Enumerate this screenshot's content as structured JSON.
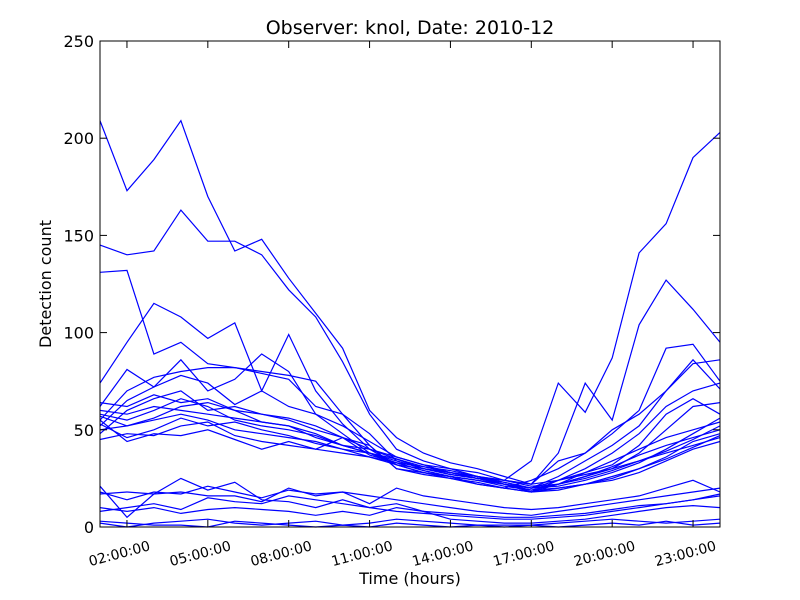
{
  "chart_data": {
    "type": "line",
    "title": "Observer: knol, Date: 2010-12",
    "xlabel": "Time (hours)",
    "ylabel": "Detection count",
    "x": [
      1,
      2,
      3,
      4,
      5,
      6,
      7,
      8,
      9,
      10,
      11,
      12,
      13,
      14,
      15,
      16,
      17,
      18,
      19,
      20,
      21,
      22,
      23,
      24
    ],
    "xlim": [
      1,
      24
    ],
    "ylim": [
      0,
      250
    ],
    "grid": false,
    "xticks": [
      {
        "x": 2,
        "label": "02:00:00"
      },
      {
        "x": 5,
        "label": "05:00:00"
      },
      {
        "x": 8,
        "label": "08:00:00"
      },
      {
        "x": 11,
        "label": "11:00:00"
      },
      {
        "x": 14,
        "label": "14:00:00"
      },
      {
        "x": 17,
        "label": "17:00:00"
      },
      {
        "x": 20,
        "label": "20:00:00"
      },
      {
        "x": 23,
        "label": "23:00:00"
      }
    ],
    "yticks": [
      0,
      50,
      100,
      150,
      200,
      250
    ],
    "line_color": "#0000ff",
    "series": [
      {
        "values": [
          209,
          173,
          189,
          209,
          170,
          142,
          148,
          128,
          110,
          92,
          60,
          46,
          38,
          33,
          30,
          26,
          22,
          34,
          38,
          50,
          58,
          70,
          84,
          86
        ]
      },
      {
        "values": [
          145,
          140,
          142,
          163,
          147,
          147,
          140,
          122,
          108,
          85,
          58,
          40,
          34,
          30,
          28,
          24,
          22,
          38,
          74,
          55,
          104,
          127,
          112,
          95
        ]
      },
      {
        "values": [
          131,
          132,
          89,
          95,
          84,
          82,
          80,
          78,
          75,
          58,
          48,
          34,
          30,
          27,
          25,
          24,
          34,
          74,
          59,
          87,
          141,
          156,
          190,
          203
        ]
      },
      {
        "values": [
          74,
          95,
          115,
          108,
          97,
          105,
          70,
          99,
          70,
          53,
          40,
          32,
          28,
          26,
          22,
          20,
          24,
          30,
          38,
          48,
          60,
          92,
          94,
          75
        ]
      },
      {
        "values": [
          62,
          81,
          72,
          86,
          70,
          76,
          89,
          80,
          58,
          52,
          44,
          36,
          32,
          30,
          26,
          22,
          20,
          26,
          34,
          42,
          52,
          70,
          86,
          71
        ]
      },
      {
        "values": [
          55,
          70,
          77,
          80,
          82,
          82,
          79,
          76,
          62,
          58,
          42,
          30,
          28,
          26,
          24,
          22,
          18,
          24,
          30,
          38,
          48,
          62,
          70,
          74
        ]
      },
      {
        "values": [
          52,
          65,
          72,
          78,
          74,
          63,
          70,
          62,
          58,
          48,
          38,
          32,
          30,
          28,
          26,
          23,
          20,
          22,
          28,
          32,
          42,
          58,
          66,
          58
        ]
      },
      {
        "values": [
          48,
          60,
          66,
          70,
          60,
          62,
          58,
          55,
          50,
          46,
          37,
          33,
          31,
          29,
          26,
          24,
          21,
          22,
          26,
          30,
          38,
          50,
          62,
          64
        ]
      },
      {
        "values": [
          58,
          55,
          60,
          66,
          62,
          55,
          52,
          50,
          47,
          42,
          40,
          35,
          30,
          28,
          25,
          23,
          20,
          21,
          24,
          28,
          33,
          40,
          48,
          56
        ]
      },
      {
        "values": [
          50,
          52,
          55,
          58,
          55,
          50,
          48,
          46,
          44,
          40,
          38,
          34,
          30,
          27,
          25,
          22,
          19,
          20,
          22,
          26,
          30,
          36,
          44,
          48
        ]
      },
      {
        "values": [
          45,
          48,
          47,
          52,
          54,
          47,
          44,
          42,
          40,
          38,
          36,
          33,
          29,
          26,
          24,
          22,
          18,
          19,
          22,
          24,
          28,
          34,
          40,
          44
        ]
      },
      {
        "values": [
          53,
          46,
          50,
          56,
          52,
          54,
          50,
          47,
          43,
          40,
          36,
          32,
          28,
          25,
          23,
          20,
          18,
          20,
          22,
          25,
          30,
          35,
          41,
          47
        ]
      },
      {
        "values": [
          60,
          58,
          62,
          60,
          58,
          56,
          54,
          52,
          48,
          42,
          38,
          33,
          29,
          26,
          24,
          21,
          19,
          22,
          25,
          29,
          34,
          39,
          45,
          52
        ]
      },
      {
        "values": [
          64,
          62,
          68,
          64,
          66,
          60,
          58,
          56,
          52,
          46,
          40,
          36,
          32,
          28,
          25,
          22,
          20,
          24,
          28,
          34,
          40,
          46,
          50,
          54
        ]
      },
      {
        "values": [
          55,
          44,
          48,
          47,
          50,
          45,
          40,
          44,
          40,
          46,
          42,
          30,
          27,
          25,
          22,
          20,
          18,
          22,
          26,
          31,
          37,
          42,
          46,
          50
        ]
      },
      {
        "values": [
          57,
          52,
          56,
          62,
          64,
          60,
          54,
          52,
          46,
          42,
          38,
          35,
          31,
          28,
          26,
          24,
          22,
          24,
          27,
          30,
          34,
          38,
          42,
          46
        ]
      },
      {
        "values": [
          21,
          5,
          17,
          18,
          16,
          16,
          13,
          20,
          16,
          18,
          12,
          20,
          16,
          14,
          12,
          10,
          9,
          10,
          12,
          14,
          16,
          20,
          24,
          18
        ]
      },
      {
        "values": [
          17,
          18,
          17,
          25,
          19,
          23,
          14,
          13,
          10,
          14,
          10,
          12,
          8,
          7,
          6,
          5,
          5,
          6,
          7,
          9,
          11,
          12,
          14,
          17
        ]
      },
      {
        "values": [
          18,
          14,
          18,
          17,
          21,
          18,
          15,
          19,
          17,
          18,
          16,
          14,
          12,
          10,
          8,
          7,
          6,
          8,
          10,
          12,
          14,
          16,
          18,
          20
        ]
      },
      {
        "values": [
          8,
          10,
          12,
          9,
          15,
          13,
          12,
          16,
          14,
          12,
          10,
          8,
          7,
          6,
          5,
          4,
          4,
          5,
          6,
          8,
          10,
          12,
          14,
          16
        ]
      },
      {
        "values": [
          2,
          0,
          2,
          3,
          4,
          2,
          1,
          2,
          3,
          1,
          2,
          4,
          3,
          2,
          1,
          1,
          1,
          2,
          3,
          4,
          3,
          2,
          3,
          4
        ]
      },
      {
        "values": [
          3,
          2,
          1,
          1,
          0,
          3,
          2,
          1,
          0,
          1,
          0,
          2,
          1,
          0,
          1,
          0,
          1,
          0,
          1,
          2,
          1,
          3,
          1,
          2
        ]
      },
      {
        "values": [
          10,
          8,
          10,
          7,
          9,
          10,
          9,
          8,
          6,
          8,
          6,
          10,
          8,
          4,
          3,
          2,
          2,
          3,
          4,
          6,
          8,
          10,
          11,
          10
        ]
      }
    ]
  }
}
